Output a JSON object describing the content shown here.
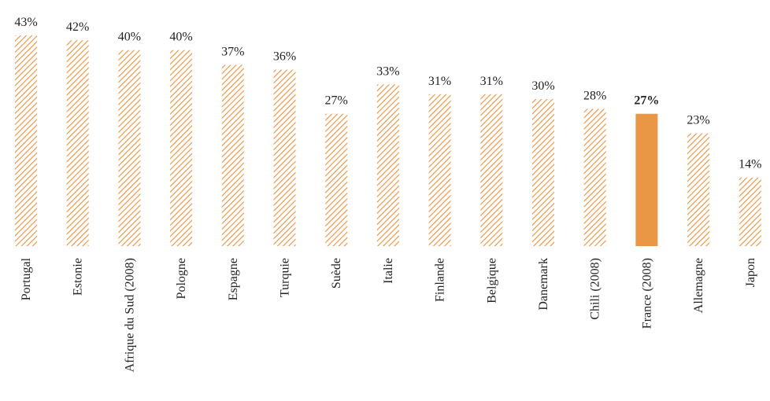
{
  "chart_data": {
    "type": "bar",
    "categories": [
      "Portugal",
      "Estonie",
      "Afrique du Sud (2008)",
      "Pologne",
      "Espagne",
      "Turquie",
      "Suède",
      "Italie",
      "Finlande",
      "Belgique",
      "Danemark",
      "Chili (2008)",
      "France (2008)",
      "Allemagne",
      "Japon"
    ],
    "values": [
      43,
      42,
      40,
      40,
      37,
      36,
      27,
      33,
      31,
      31,
      30,
      28,
      27,
      23,
      14
    ],
    "value_labels": [
      "43%",
      "42%",
      "40%",
      "40%",
      "37%",
      "36%",
      "27%",
      "33%",
      "31%",
      "31%",
      "30%",
      "28%",
      "27%",
      "23%",
      "14%"
    ],
    "color": "#e8913a",
    "bar_styles": [
      "hatched",
      "hatched",
      "hatched",
      "hatched",
      "hatched",
      "hatched",
      "hatched",
      "hatched",
      "hatched",
      "hatched",
      "hatched",
      "hatched",
      "solid",
      "hatched",
      "hatched"
    ]
  }
}
